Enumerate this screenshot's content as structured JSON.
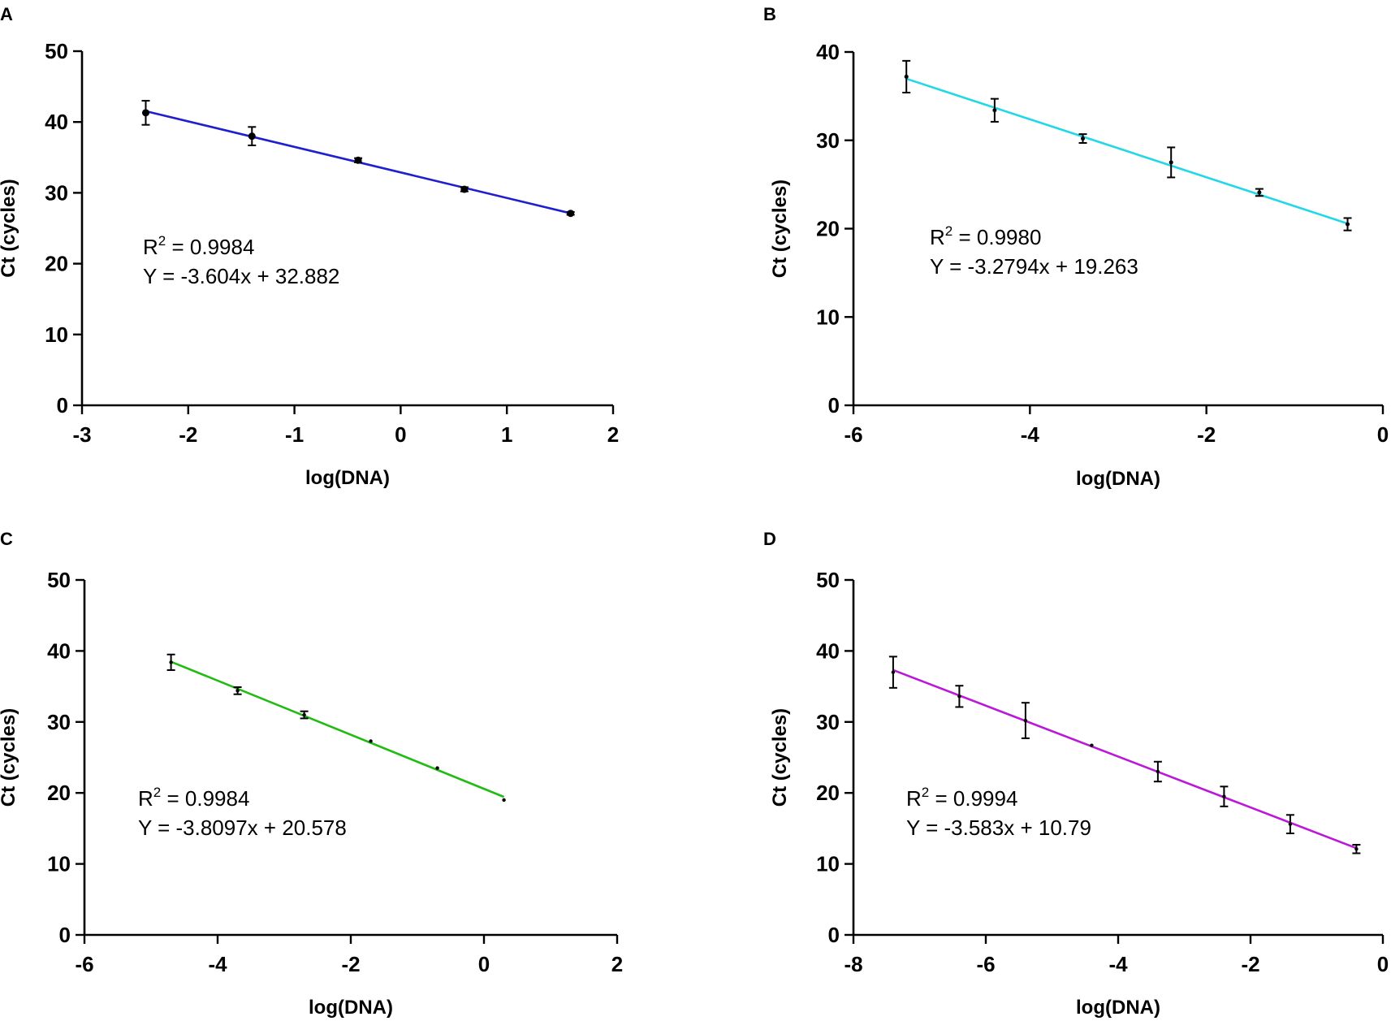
{
  "chart_data": [
    {
      "type": "scatter",
      "panel": "A",
      "title": "",
      "xlabel": "log(DNA)",
      "ylabel": "Ct (cycles)",
      "xlim": [
        -3,
        2
      ],
      "ylim": [
        0,
        50
      ],
      "xticks": [
        -3,
        -2,
        -1,
        0,
        1,
        2
      ],
      "yticks": [
        0,
        10,
        20,
        30,
        40,
        50
      ],
      "x_tick_labels": [
        "-3",
        "-2",
        "-1",
        "0",
        "1",
        "2"
      ],
      "y_tick_labels": [
        "0",
        "10",
        "20",
        "30",
        "40",
        "50"
      ],
      "line_color": "#1f1fcc",
      "fit": {
        "slope": -3.604,
        "intercept": 32.882,
        "x_range": [
          -2.4,
          1.6
        ]
      },
      "points": [
        {
          "x": -2.4,
          "y": 41.3,
          "err": 1.7
        },
        {
          "x": -1.4,
          "y": 38.0,
          "err": 1.3
        },
        {
          "x": -0.4,
          "y": 34.6,
          "err": 0.3
        },
        {
          "x": 0.6,
          "y": 30.5,
          "err": 0.3
        },
        {
          "x": 1.6,
          "y": 27.1,
          "err": 0.2
        }
      ],
      "point_radius": 4.5,
      "annotation": {
        "r2_prefix": "R",
        "r2_sup": "2",
        "r2_value": " = 0.9984",
        "equation": "Y = -3.604x + 32.882"
      }
    },
    {
      "type": "scatter",
      "panel": "B",
      "title": "",
      "xlabel": "log(DNA)",
      "ylabel": "Ct (cycles)",
      "xlim": [
        -6,
        0
      ],
      "ylim": [
        0,
        40
      ],
      "xticks": [
        -6,
        -4,
        -2,
        0
      ],
      "yticks": [
        0,
        10,
        20,
        30,
        40
      ],
      "x_tick_labels": [
        "-6",
        "-4",
        "-2",
        "0"
      ],
      "y_tick_labels": [
        "0",
        "10",
        "20",
        "30",
        "40"
      ],
      "line_color": "#22d8e6",
      "fit": {
        "slope": -3.2794,
        "intercept": 19.263,
        "x_range": [
          -5.4,
          -0.4
        ]
      },
      "points": [
        {
          "x": -5.4,
          "y": 37.2,
          "err": 1.8
        },
        {
          "x": -4.4,
          "y": 33.4,
          "err": 1.3
        },
        {
          "x": -3.4,
          "y": 30.2,
          "err": 0.5
        },
        {
          "x": -2.4,
          "y": 27.5,
          "err": 1.7
        },
        {
          "x": -1.4,
          "y": 24.1,
          "err": 0.4
        },
        {
          "x": -0.4,
          "y": 20.5,
          "err": 0.7
        }
      ],
      "point_radius": 2.5,
      "annotation": {
        "r2_prefix": "R",
        "r2_sup": "2",
        "r2_value": " = 0.9980",
        "equation": "Y = -3.2794x + 19.263"
      }
    },
    {
      "type": "scatter",
      "panel": "C",
      "title": "",
      "xlabel": "log(DNA)",
      "ylabel": "Ct (cycles)",
      "xlim": [
        -6,
        2
      ],
      "ylim": [
        0,
        50
      ],
      "xticks": [
        -6,
        -4,
        -2,
        0,
        2
      ],
      "yticks": [
        0,
        10,
        20,
        30,
        40,
        50
      ],
      "x_tick_labels": [
        "-6",
        "-4",
        "-2",
        "0",
        "2"
      ],
      "y_tick_labels": [
        "0",
        "10",
        "20",
        "30",
        "40",
        "50"
      ],
      "line_color": "#22bb14",
      "fit": {
        "slope": -3.8097,
        "intercept": 20.578,
        "x_range": [
          -4.7,
          0.3
        ]
      },
      "points": [
        {
          "x": -4.7,
          "y": 38.4,
          "err": 1.1
        },
        {
          "x": -3.7,
          "y": 34.4,
          "err": 0.5
        },
        {
          "x": -2.7,
          "y": 31.0,
          "err": 0.5
        },
        {
          "x": -1.7,
          "y": 27.3,
          "err": 0.1
        },
        {
          "x": -0.7,
          "y": 23.5,
          "err": 0.1
        },
        {
          "x": 0.3,
          "y": 19.0,
          "err": 0.1
        }
      ],
      "point_radius": 2.2,
      "annotation": {
        "r2_prefix": "R",
        "r2_sup": "2",
        "r2_value": " = 0.9984",
        "equation": "Y = -3.8097x + 20.578"
      }
    },
    {
      "type": "scatter",
      "panel": "D",
      "title": "",
      "xlabel": "log(DNA)",
      "ylabel": "Ct (cycles)",
      "xlim": [
        -8,
        0
      ],
      "ylim": [
        0,
        50
      ],
      "xticks": [
        -8,
        -6,
        -4,
        -2,
        0
      ],
      "yticks": [
        0,
        10,
        20,
        30,
        40,
        50
      ],
      "x_tick_labels": [
        "-8",
        "-6",
        "-4",
        "-2",
        "0"
      ],
      "y_tick_labels": [
        "0",
        "10",
        "20",
        "30",
        "40",
        "50"
      ],
      "line_color": "#bb18d8",
      "fit": {
        "slope": -3.583,
        "intercept": 10.79,
        "x_range": [
          -7.4,
          -0.4
        ]
      },
      "points": [
        {
          "x": -7.4,
          "y": 37.0,
          "err": 2.2
        },
        {
          "x": -6.4,
          "y": 33.6,
          "err": 1.5
        },
        {
          "x": -5.4,
          "y": 30.2,
          "err": 2.5
        },
        {
          "x": -4.4,
          "y": 26.7,
          "err": 0.1
        },
        {
          "x": -3.4,
          "y": 23.0,
          "err": 1.4
        },
        {
          "x": -2.4,
          "y": 19.5,
          "err": 1.4
        },
        {
          "x": -1.4,
          "y": 15.6,
          "err": 1.3
        },
        {
          "x": -0.4,
          "y": 12.1,
          "err": 0.6
        }
      ],
      "point_radius": 2.2,
      "annotation": {
        "r2_prefix": "R",
        "r2_sup": "2",
        "r2_value": " = 0.9994",
        "equation": "Y = -3.583x + 10.79"
      }
    }
  ]
}
